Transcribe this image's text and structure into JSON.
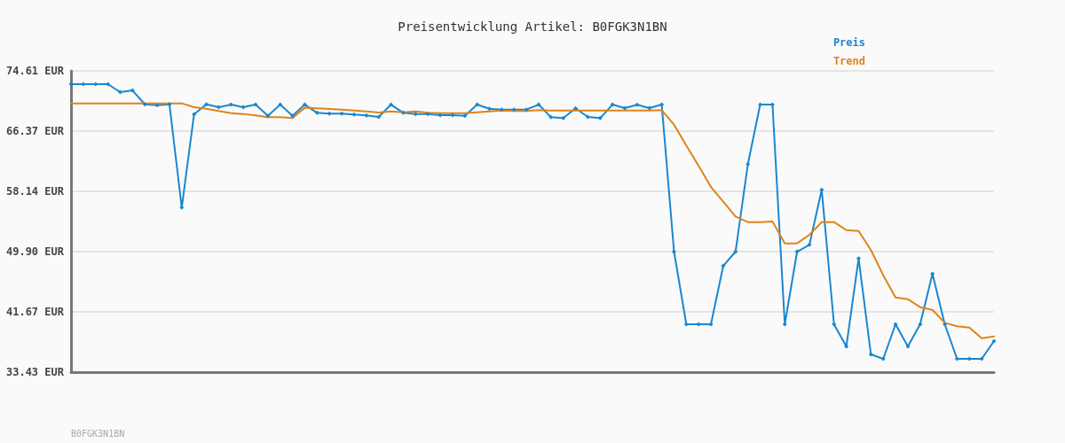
{
  "chart_data": {
    "type": "line",
    "title": "Preisentwicklung Artikel: B0FGK3N1BN",
    "categories": [
      null,
      null,
      null,
      null,
      null,
      null,
      null,
      null,
      null,
      null,
      null,
      null,
      null,
      null,
      null,
      null,
      null,
      null,
      null,
      null,
      null,
      null,
      null,
      null,
      null,
      null,
      null,
      null,
      null,
      null,
      null,
      null,
      null,
      null,
      null,
      null,
      null,
      null,
      null,
      null,
      null,
      null,
      null,
      null,
      null,
      null,
      null,
      null,
      null,
      null,
      null,
      null,
      null,
      null,
      null,
      null,
      null,
      null,
      null,
      null,
      null,
      null,
      null,
      null,
      null,
      null,
      null,
      null,
      null,
      null,
      null,
      null,
      null,
      null,
      null,
      null
    ],
    "series": [
      {
        "name": "Preis",
        "color": "#1a87d0",
        "marker": "diamond",
        "values": [
          72.79,
          72.79,
          72.79,
          72.79,
          71.7,
          71.94,
          70.04,
          69.92,
          70.04,
          55.92,
          68.68,
          70.04,
          69.64,
          70.0,
          69.64,
          70.0,
          68.47,
          70.0,
          68.47,
          70.0,
          68.88,
          68.76,
          68.76,
          68.64,
          68.52,
          68.31,
          70.0,
          68.88,
          68.72,
          68.72,
          68.55,
          68.55,
          68.47,
          70.0,
          69.44,
          69.32,
          69.32,
          69.32,
          70.0,
          68.27,
          68.15,
          69.49,
          68.31,
          68.15,
          70.0,
          69.52,
          69.97,
          69.52,
          70.0,
          49.9,
          39.97,
          39.97,
          39.97,
          47.96,
          49.9,
          61.86,
          70.0,
          70.0,
          39.97,
          49.9,
          50.83,
          58.34,
          39.97,
          36.94,
          48.97,
          35.85,
          35.25,
          39.97,
          36.94,
          39.97,
          46.87,
          39.97,
          35.25,
          35.25,
          35.25,
          37.67
        ]
      },
      {
        "name": "Trend",
        "color": "#e0831a",
        "marker": "none",
        "values": [
          70.17,
          70.17,
          70.17,
          70.17,
          70.17,
          70.17,
          70.17,
          70.17,
          70.17,
          70.17,
          69.64,
          69.44,
          69.12,
          68.84,
          68.72,
          68.52,
          68.27,
          68.27,
          68.15,
          69.57,
          69.49,
          69.4,
          69.32,
          69.2,
          69.08,
          68.92,
          69.08,
          68.96,
          69.08,
          68.88,
          68.84,
          68.84,
          68.84,
          68.96,
          69.08,
          69.2,
          69.12,
          69.12,
          69.24,
          69.2,
          69.2,
          69.2,
          69.2,
          69.2,
          69.2,
          69.2,
          69.2,
          69.2,
          69.24,
          67.26,
          64.4,
          61.61,
          58.74,
          56.72,
          54.71,
          53.94,
          53.94,
          54.02,
          51.03,
          51.03,
          52.2,
          53.94,
          53.94,
          52.85,
          52.72,
          50.11,
          46.67,
          43.64,
          43.4,
          42.31,
          41.94,
          40.17,
          39.69,
          39.52,
          38.07,
          38.31
        ]
      }
    ],
    "ylim": [
      33.43,
      74.61
    ],
    "yticks": [
      {
        "value": 33.43,
        "label": "33.43 EUR"
      },
      {
        "value": 41.67,
        "label": "41.67 EUR"
      },
      {
        "value": 49.9,
        "label": "49.90 EUR"
      },
      {
        "value": 58.14,
        "label": "58.14 EUR"
      },
      {
        "value": 66.37,
        "label": "66.37 EUR"
      },
      {
        "value": 74.61,
        "label": "74.61 EUR"
      }
    ],
    "grid": "y",
    "legend": "top right",
    "tick_labels": "y",
    "line_style": "solid",
    "annotations": [
      "B0FGK3N1BN"
    ]
  }
}
